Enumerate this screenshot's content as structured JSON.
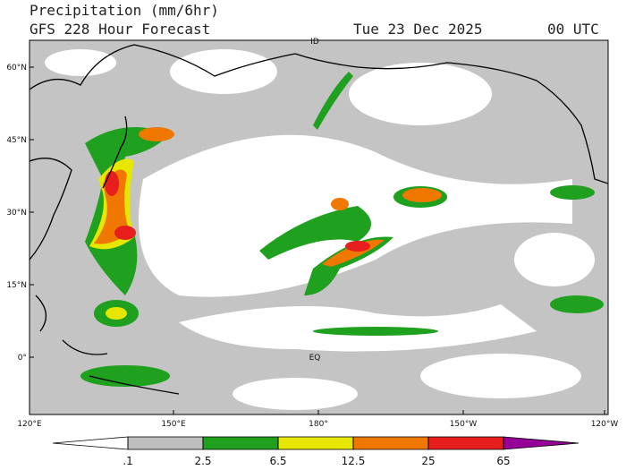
{
  "header": {
    "title": "Precipitation (mm/6hr)",
    "subtitle": "GFS 228 Hour Forecast",
    "date": "Tue 23 Dec 2025",
    "time": "00 UTC"
  },
  "map": {
    "lat_labels": [
      "60°N",
      "45°N",
      "30°N",
      "15°N",
      "0°"
    ],
    "lon_labels": [
      "120°E",
      "150°E",
      "180°",
      "150°W",
      "120°W"
    ],
    "annotations": [
      "ID",
      "EQ"
    ]
  },
  "colorbar": {
    "levels": [
      {
        "value": 0.1,
        "label": ".1"
      },
      2.5,
      6.5,
      12.5,
      25,
      65
    ],
    "colors": [
      "#ffffff",
      "#bebebe",
      "#1fa01f",
      "#e6e600",
      "#f07800",
      "#e61e1e",
      "#960096"
    ]
  }
}
